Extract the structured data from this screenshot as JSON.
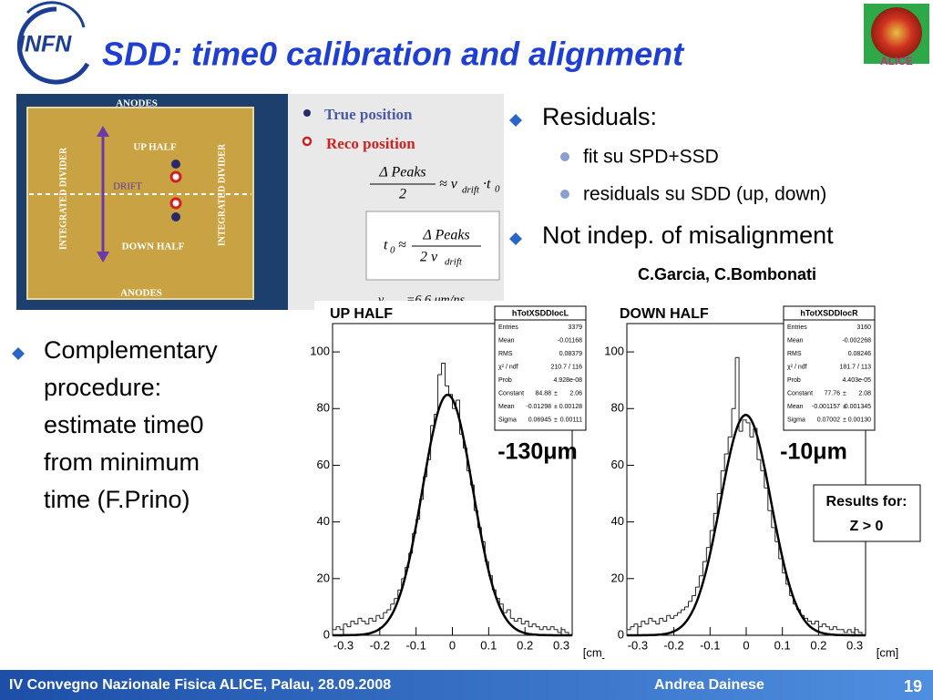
{
  "header": {
    "title": "SDD: time0 calibration and alignment",
    "left_logo": "INFN",
    "right_logo": "ALICE"
  },
  "diagram": {
    "labels": {
      "anodes_top": "ANODES",
      "anodes_bottom": "ANODES",
      "up_half": "UP HALF",
      "down_half": "DOWN HALF",
      "drift": "DRIFT",
      "divider_left": "INTEGRATED DIVIDER",
      "divider_right": "INTEGRATED DIVIDER"
    },
    "legend": [
      "True position",
      "Reco position"
    ],
    "formula1": {
      "num": "Δ Peaks",
      "den": "2",
      "rel": "≈ v",
      "sub": "drift",
      "rest": "·t",
      "sub2": "0"
    },
    "formula2": {
      "lhs": "t",
      "lhs_sub": "0",
      "rel": "≈",
      "num": "Δ Peaks",
      "den": "2 v",
      "den_sub": "drift"
    },
    "formula3": {
      "lhs": "v",
      "lhs_sub": "drift",
      "rest": "=6.6  μm/ns"
    }
  },
  "bullets": {
    "right": [
      {
        "text": "Residuals:",
        "sub": [
          "fit su SPD+SSD",
          "residuals su SDD (up, down)"
        ]
      },
      {
        "text": "Not indep. of misalignment",
        "sub": []
      }
    ],
    "credit": "C.Garcia, C.Bombonati",
    "left": [
      "Complementary",
      "procedure:",
      "estimate time0",
      "from minimum",
      "time (F.Prino)"
    ]
  },
  "chart_data": [
    {
      "type": "histogram",
      "title": "UP HALF",
      "x_label": "[cm]",
      "bins": [
        -0.33,
        -0.32,
        -0.31,
        -0.3,
        -0.29,
        -0.28,
        -0.27,
        -0.26,
        -0.25,
        -0.24,
        -0.23,
        -0.22,
        -0.21,
        -0.2,
        -0.19,
        -0.18,
        -0.17,
        -0.16,
        -0.15,
        -0.14,
        -0.13,
        -0.12,
        -0.11,
        -0.1,
        -0.09,
        -0.08,
        -0.07,
        -0.06,
        -0.05,
        -0.04,
        -0.03,
        -0.02,
        -0.01,
        0,
        0.01,
        0.02,
        0.03,
        0.04,
        0.05,
        0.06,
        0.07,
        0.08,
        0.09,
        0.1,
        0.11,
        0.12,
        0.13,
        0.14,
        0.15,
        0.16,
        0.17,
        0.18,
        0.19,
        0.2,
        0.21,
        0.22,
        0.23,
        0.24,
        0.25,
        0.26,
        0.27,
        0.28,
        0.29,
        0.3,
        0.31,
        0.32
      ],
      "values": [
        2,
        3,
        2,
        4,
        3,
        5,
        4,
        6,
        5,
        4,
        6,
        5,
        7,
        6,
        8,
        9,
        11,
        13,
        16,
        20,
        24,
        29,
        36,
        41,
        48,
        56,
        62,
        74,
        78,
        92,
        96,
        88,
        85,
        80,
        83,
        71,
        66,
        58,
        53,
        44,
        38,
        33,
        26,
        21,
        16,
        13,
        11,
        8,
        9,
        6,
        5,
        6,
        4,
        5,
        3,
        4,
        3,
        2,
        3,
        2,
        3,
        2,
        1,
        2,
        1
      ],
      "color": "#222222",
      "fit_color": "#000000",
      "xlim": [
        -0.33,
        0.33
      ],
      "ylim": [
        0,
        110
      ],
      "xticks": [
        -0.3,
        -0.2,
        -0.1,
        0,
        0.1,
        0.2,
        0.3
      ],
      "yticks": [
        0,
        20,
        40,
        60,
        80,
        100
      ],
      "stats": {
        "name": "hTotXSDDlocL",
        "plus_minus": "±",
        "rows": [
          {
            "label": "Entries",
            "value": 3379
          },
          {
            "label": "Mean",
            "value": -0.01168
          },
          {
            "label": "RMS",
            "value": 0.08379
          },
          {
            "label": "χ² / ndf",
            "value": "210.7 / 116"
          },
          {
            "label": "Prob",
            "value": "4.928e-08"
          },
          {
            "label": "Constant",
            "value": 84.88,
            "error": "2.06"
          },
          {
            "label": "Mean",
            "value": -0.01298,
            "error": "0.00128"
          },
          {
            "label": "Sigma",
            "value": 0.06945,
            "error": "0.00111"
          }
        ]
      },
      "annotations": [
        "-130μm"
      ],
      "notes": []
    },
    {
      "type": "histogram",
      "title": "DOWN HALF",
      "x_label": "[cm]",
      "bins": [
        -0.33,
        -0.32,
        -0.31,
        -0.3,
        -0.29,
        -0.28,
        -0.27,
        -0.26,
        -0.25,
        -0.24,
        -0.23,
        -0.22,
        -0.21,
        -0.2,
        -0.19,
        -0.18,
        -0.17,
        -0.16,
        -0.15,
        -0.14,
        -0.13,
        -0.12,
        -0.11,
        -0.1,
        -0.09,
        -0.08,
        -0.07,
        -0.06,
        -0.05,
        -0.04,
        -0.03,
        -0.02,
        -0.01,
        0,
        0.01,
        0.02,
        0.03,
        0.04,
        0.05,
        0.06,
        0.07,
        0.08,
        0.09,
        0.1,
        0.11,
        0.12,
        0.13,
        0.14,
        0.15,
        0.16,
        0.17,
        0.18,
        0.19,
        0.2,
        0.21,
        0.22,
        0.23,
        0.24,
        0.25,
        0.26,
        0.27,
        0.28,
        0.29,
        0.3,
        0.31,
        0.32
      ],
      "values": [
        2,
        3,
        4,
        3,
        5,
        4,
        6,
        5,
        4,
        6,
        5,
        7,
        6,
        7,
        8,
        9,
        10,
        12,
        14,
        17,
        21,
        26,
        31,
        37,
        43,
        50,
        58,
        64,
        70,
        80,
        98,
        72,
        76,
        75,
        70,
        73,
        62,
        58,
        52,
        44,
        38,
        33,
        27,
        22,
        18,
        14,
        11,
        9,
        7,
        6,
        5,
        4,
        5,
        3,
        4,
        3,
        2,
        3,
        2,
        2,
        1,
        2,
        1,
        2,
        1
      ],
      "color": "#222222",
      "fit_color": "#000000",
      "xlim": [
        -0.33,
        0.33
      ],
      "ylim": [
        0,
        110
      ],
      "xticks": [
        -0.3,
        -0.2,
        -0.1,
        0,
        0.1,
        0.2,
        0.3
      ],
      "yticks": [
        0,
        20,
        40,
        60,
        80,
        100
      ],
      "stats": {
        "name": "hTotXSDDlocR",
        "plus_minus": "±",
        "rows": [
          {
            "label": "Entries",
            "value": 3160
          },
          {
            "label": "Mean",
            "value": -0.002268
          },
          {
            "label": "RMS",
            "value": 0.08246
          },
          {
            "label": "χ² / ndf",
            "value": "181.7 / 113"
          },
          {
            "label": "Prob",
            "value": "4.403e-05"
          },
          {
            "label": "Constant",
            "value": 77.76,
            "error": "2.08"
          },
          {
            "label": "Mean",
            "value": -0.001157,
            "error": "0.001345"
          },
          {
            "label": "Sigma",
            "value": 0.07002,
            "error": "0.00130"
          }
        ]
      },
      "annotations": [
        "-10μm"
      ],
      "notes": [
        "Results for:",
        "Z > 0"
      ]
    }
  ],
  "footer": {
    "event": "IV Convegno Nazionale Fisica ALICE, Palau, 28.09.2008",
    "author": "Andrea Dainese",
    "page": "19"
  }
}
